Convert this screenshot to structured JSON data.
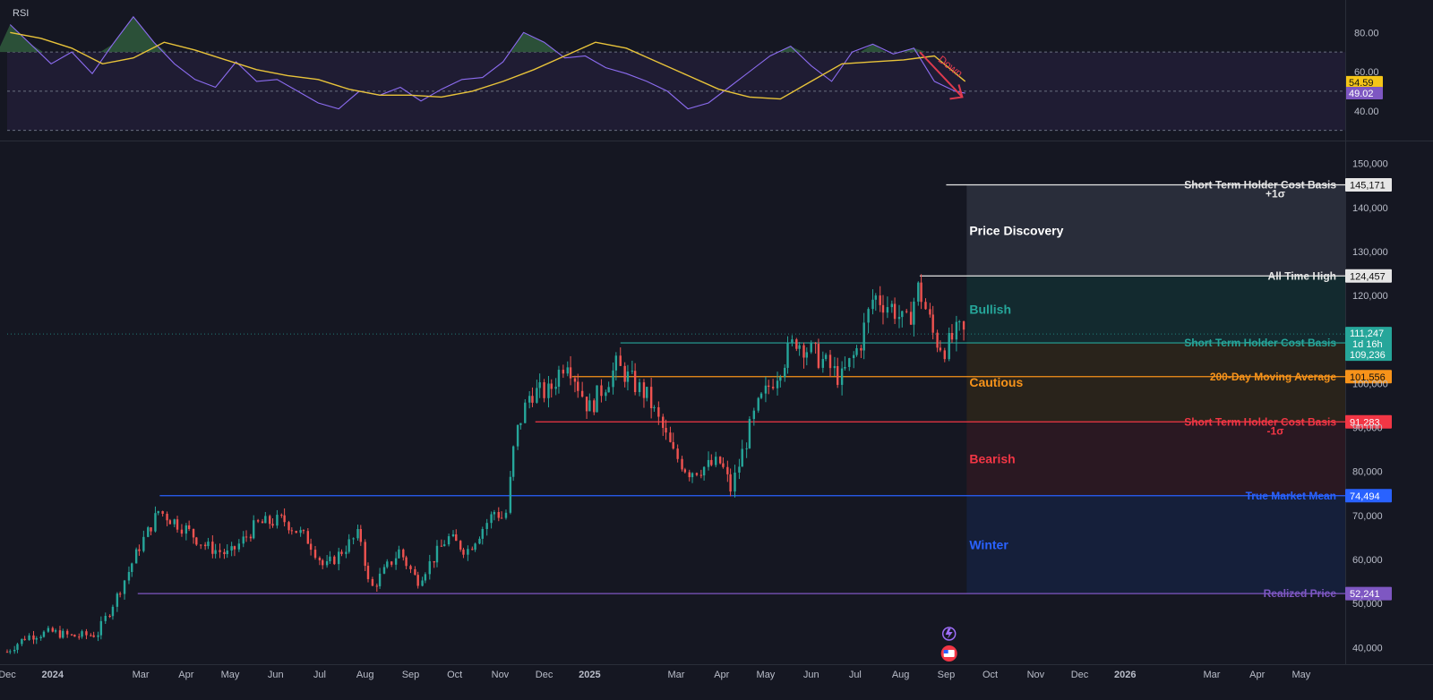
{
  "chart_data": [
    {
      "type": "line",
      "title": "RSI",
      "ylim": [
        28,
        92
      ],
      "y_ticks": [
        40,
        60,
        80
      ],
      "y_tick_labels": [
        "40.00",
        "60.00",
        "80.00"
      ],
      "band": {
        "upper": 70,
        "middle": 50,
        "lower": 30
      },
      "value_tags": [
        {
          "text": "54.59",
          "value": 54.59,
          "color": "#f5c518",
          "text_color": "#111111"
        },
        {
          "text": "49.02",
          "value": 49.02,
          "color": "#7e57c2",
          "text_color": "#ffffff"
        }
      ],
      "annotation": {
        "text": "Down",
        "color": "#e03a4e"
      },
      "series": [
        {
          "color": "#8c6cf0",
          "x": [
            "2023-12-03",
            "2023-12-17",
            "2023-12-31",
            "2024-01-14",
            "2024-01-28",
            "2024-02-11",
            "2024-02-25",
            "2024-03-10",
            "2024-03-24",
            "2024-04-07",
            "2024-04-21",
            "2024-05-05",
            "2024-05-19",
            "2024-06-02",
            "2024-06-16",
            "2024-06-30",
            "2024-07-14",
            "2024-07-28",
            "2024-08-11",
            "2024-08-25",
            "2024-09-08",
            "2024-09-22",
            "2024-10-06",
            "2024-10-20",
            "2024-11-03",
            "2024-11-17",
            "2024-12-01",
            "2024-12-15",
            "2024-12-29",
            "2025-01-12",
            "2025-01-26",
            "2025-02-09",
            "2025-02-23",
            "2025-03-09",
            "2025-03-23",
            "2025-04-06",
            "2025-04-20",
            "2025-05-04",
            "2025-05-18",
            "2025-06-01",
            "2025-06-15",
            "2025-06-29",
            "2025-07-13",
            "2025-07-27",
            "2025-08-10",
            "2025-08-24",
            "2025-09-07",
            "2025-09-14"
          ],
          "values": [
            84,
            74,
            64,
            70,
            59,
            74,
            88,
            75,
            64,
            56,
            52,
            65,
            55,
            56,
            50,
            44,
            41,
            50,
            48,
            52,
            45,
            51,
            56,
            57,
            65,
            80,
            75,
            67,
            68,
            62,
            59,
            55,
            50,
            41,
            44,
            52,
            60,
            68,
            73,
            63,
            55,
            70,
            74,
            69,
            72,
            55,
            50,
            49
          ]
        },
        {
          "color": "#e8c33a",
          "x": [
            "2023-12-03",
            "2023-12-24",
            "2024-01-14",
            "2024-02-04",
            "2024-02-25",
            "2024-03-17",
            "2024-04-07",
            "2024-04-28",
            "2024-05-19",
            "2024-06-09",
            "2024-06-30",
            "2024-07-21",
            "2024-08-11",
            "2024-09-01",
            "2024-09-22",
            "2024-10-13",
            "2024-11-03",
            "2024-11-24",
            "2024-12-15",
            "2025-01-05",
            "2025-01-26",
            "2025-02-16",
            "2025-03-09",
            "2025-03-30",
            "2025-04-20",
            "2025-05-11",
            "2025-06-01",
            "2025-06-22",
            "2025-07-13",
            "2025-08-03",
            "2025-08-24",
            "2025-09-14"
          ],
          "values": [
            80,
            77,
            72,
            64,
            67,
            75,
            71,
            66,
            61,
            58,
            56,
            51,
            48,
            48,
            47,
            50,
            55,
            61,
            68,
            75,
            72,
            65,
            58,
            51,
            47,
            46,
            55,
            64,
            65,
            66,
            68,
            55
          ]
        }
      ]
    },
    {
      "type": "candlestick",
      "ylim": [
        37000,
        153000
      ],
      "y_ticks": [
        40000,
        50000,
        60000,
        70000,
        80000,
        90000,
        100000,
        110000,
        120000,
        130000,
        140000,
        150000
      ],
      "y_tick_labels": [
        "40,000",
        "50,000",
        "60,000",
        "70,000",
        "80,000",
        "90,000",
        "100,000",
        "110,000",
        "120,000",
        "130,000",
        "140,000",
        "150,000"
      ],
      "xlim": [
        "2023-12-01",
        "2026-05-31"
      ],
      "x_ticks": [
        {
          "date": "2023-12-01",
          "label": "Dec"
        },
        {
          "date": "2024-01-01",
          "label": "2024"
        },
        {
          "date": "2024-03-01",
          "label": "Mar"
        },
        {
          "date": "2024-04-01",
          "label": "Apr"
        },
        {
          "date": "2024-05-01",
          "label": "May"
        },
        {
          "date": "2024-06-01",
          "label": "Jun"
        },
        {
          "date": "2024-07-01",
          "label": "Jul"
        },
        {
          "date": "2024-08-01",
          "label": "Aug"
        },
        {
          "date": "2024-09-01",
          "label": "Sep"
        },
        {
          "date": "2024-10-01",
          "label": "Oct"
        },
        {
          "date": "2024-11-01",
          "label": "Nov"
        },
        {
          "date": "2024-12-01",
          "label": "Dec"
        },
        {
          "date": "2025-01-01",
          "label": "2025"
        },
        {
          "date": "2025-03-01",
          "label": "Mar"
        },
        {
          "date": "2025-04-01",
          "label": "Apr"
        },
        {
          "date": "2025-05-01",
          "label": "May"
        },
        {
          "date": "2025-06-01",
          "label": "Jun"
        },
        {
          "date": "2025-07-01",
          "label": "Jul"
        },
        {
          "date": "2025-08-01",
          "label": "Aug"
        },
        {
          "date": "2025-09-01",
          "label": "Sep"
        },
        {
          "date": "2025-10-01",
          "label": "Oct"
        },
        {
          "date": "2025-11-01",
          "label": "Nov"
        },
        {
          "date": "2025-12-01",
          "label": "Dec"
        },
        {
          "date": "2026-01-01",
          "label": "2026"
        },
        {
          "date": "2026-03-01",
          "label": "Mar"
        },
        {
          "date": "2026-04-01",
          "label": "Apr"
        },
        {
          "date": "2026-05-01",
          "label": "May"
        }
      ],
      "up_color": "#26a69a",
      "down_color": "#ef5350",
      "close_path": {
        "x": [
          "2023-12-01",
          "2023-12-15",
          "2024-01-01",
          "2024-01-15",
          "2024-02-01",
          "2024-02-15",
          "2024-03-01",
          "2024-03-14",
          "2024-04-01",
          "2024-04-15",
          "2024-05-01",
          "2024-05-20",
          "2024-06-07",
          "2024-06-25",
          "2024-07-05",
          "2024-07-29",
          "2024-08-05",
          "2024-08-25",
          "2024-09-06",
          "2024-09-27",
          "2024-10-10",
          "2024-10-29",
          "2024-11-05",
          "2024-11-12",
          "2024-11-22",
          "2024-12-05",
          "2024-12-17",
          "2025-01-01",
          "2025-01-20",
          "2025-02-10",
          "2025-02-28",
          "2025-03-10",
          "2025-04-01",
          "2025-04-08",
          "2025-04-25",
          "2025-05-10",
          "2025-05-22",
          "2025-06-10",
          "2025-06-22",
          "2025-07-05",
          "2025-07-14",
          "2025-07-28",
          "2025-08-05",
          "2025-08-14",
          "2025-08-25",
          "2025-09-01",
          "2025-09-10",
          "2025-09-14"
        ],
        "y": [
          39000,
          42500,
          43500,
          42500,
          43000,
          52000,
          63000,
          71000,
          67000,
          63000,
          61000,
          68000,
          69000,
          64000,
          58000,
          66000,
          53000,
          62000,
          55000,
          65000,
          62000,
          71000,
          69000,
          88000,
          98000,
          98000,
          106000,
          94000,
          104000,
          97000,
          84000,
          80000,
          82000,
          76000,
          94000,
          103000,
          110000,
          105000,
          101000,
          109000,
          120000,
          117000,
          113000,
          122000,
          110000,
          108000,
          112000,
          111200
        ]
      },
      "current": {
        "text": "111,247",
        "value": 111247,
        "countdown": "1d 16h",
        "color": "#26a69a"
      },
      "levels": [
        {
          "name": "Short Term Holder Cost Basis",
          "suffix": "+1σ",
          "value": 145171,
          "value_text": "145,171",
          "color": "#e6e6e6",
          "tag_text_color": "#111111",
          "start": "2025-09-01"
        },
        {
          "name": "All Time High",
          "suffix": "",
          "value": 124457,
          "value_text": "124,457",
          "color": "#e6e6e6",
          "tag_text_color": "#111111",
          "start": "2025-08-14"
        },
        {
          "name": "Short Term Holder Cost Basis",
          "suffix": "",
          "value": 109236,
          "value_text": "109,236",
          "color": "#26a69a",
          "tag_text_color": "#ffffff",
          "start": "2025-01-22"
        },
        {
          "name": "200-Day Moving Average",
          "suffix": "",
          "value": 101556,
          "value_text": "101,556",
          "color": "#f7931a",
          "tag_text_color": "#111111",
          "start": "2024-12-20"
        },
        {
          "name": "Short Term Holder Cost Basis",
          "suffix": "-1σ",
          "value": 91283,
          "value_text": "91,283",
          "color": "#f23645",
          "tag_text_color": "#ffffff",
          "start": "2024-11-25"
        },
        {
          "name": "True Market Mean",
          "suffix": "",
          "value": 74494,
          "value_text": "74,494",
          "color": "#2962ff",
          "tag_text_color": "#ffffff",
          "start": "2024-03-14"
        },
        {
          "name": "Realized Price",
          "suffix": "",
          "value": 52241,
          "value_text": "52,241",
          "color": "#7e57c2",
          "tag_text_color": "#ffffff",
          "start": "2024-02-28"
        }
      ],
      "zones": [
        {
          "label": "Price Discovery",
          "from": 124457,
          "to": 145171,
          "color": "#ffffff",
          "fill": "#3a3f4e"
        },
        {
          "label": "Bullish",
          "from": 109236,
          "to": 124457,
          "color": "#26a69a",
          "fill": "#123b3a"
        },
        {
          "label": "Cautious",
          "from": 91283,
          "to": 109236,
          "color": "#f7931a",
          "fill": "#3b2d16"
        },
        {
          "label": "Bearish",
          "from": 74494,
          "to": 91283,
          "color": "#f23645",
          "fill": "#3d1a22"
        },
        {
          "label": "Winter",
          "from": 52241,
          "to": 74494,
          "color": "#2962ff",
          "fill": "#15264f"
        }
      ]
    }
  ]
}
